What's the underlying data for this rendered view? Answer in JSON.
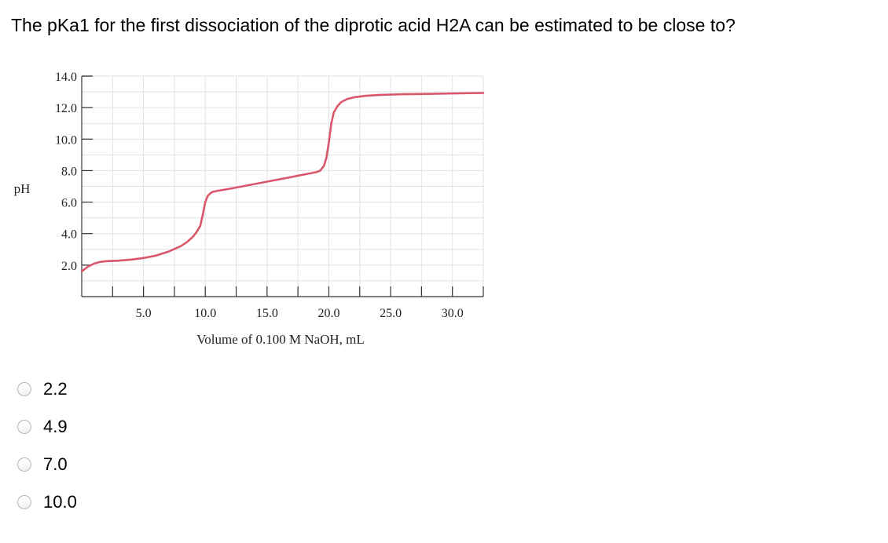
{
  "question": {
    "text": "The pKa1 for the first dissociation of the diprotic acid H2A can be estimated to be close to?"
  },
  "options": [
    {
      "label": "2.2",
      "selected": false
    },
    {
      "label": "4.9",
      "selected": false
    },
    {
      "label": "7.0",
      "selected": false
    },
    {
      "label": "10.0",
      "selected": false
    }
  ],
  "colors": {
    "curve": "#d9566b",
    "grid": "#e2e2e2",
    "axis": "#333333"
  },
  "chart_data": {
    "type": "line",
    "title": "",
    "xlabel": "Volume of 0.100 M NaOH, mL",
    "ylabel": "pH",
    "xlim": [
      0,
      32.5
    ],
    "ylim": [
      0,
      14
    ],
    "x_ticks": [
      5.0,
      10.0,
      15.0,
      20.0,
      25.0,
      30.0
    ],
    "x_tick_labels": [
      "5.0",
      "10.0",
      "15.0",
      "20.0",
      "25.0",
      "30.0"
    ],
    "y_ticks": [
      2.0,
      4.0,
      6.0,
      8.0,
      10.0,
      12.0,
      14.0
    ],
    "y_tick_labels": [
      "2.0",
      "4.0",
      "6.0",
      "8.0",
      "10.0",
      "12.0",
      "14.0"
    ],
    "grid": true,
    "legend": "none",
    "series": [
      {
        "x": [
          0,
          0.5,
          1.0,
          1.5,
          2.0,
          3.0,
          4.0,
          5.0,
          6.0,
          7.0,
          8.0,
          8.5,
          9.0,
          9.3,
          9.6,
          9.8,
          10.0,
          10.2,
          10.4,
          10.6,
          11.0,
          12.0,
          13.0,
          14.0,
          15.0,
          16.0,
          17.0,
          18.0,
          19.0,
          19.3,
          19.6,
          19.8,
          20.0,
          20.2,
          20.4,
          20.7,
          21.0,
          21.5,
          22.0,
          23.0,
          24.0,
          26.0,
          28.0,
          30.0,
          32.5
        ],
        "y": [
          1.6,
          1.9,
          2.1,
          2.2,
          2.25,
          2.28,
          2.35,
          2.45,
          2.6,
          2.85,
          3.2,
          3.45,
          3.8,
          4.1,
          4.5,
          5.2,
          6.0,
          6.4,
          6.55,
          6.65,
          6.72,
          6.85,
          7.0,
          7.15,
          7.3,
          7.45,
          7.6,
          7.75,
          7.9,
          8.0,
          8.3,
          8.8,
          9.8,
          11.0,
          11.7,
          12.1,
          12.35,
          12.55,
          12.65,
          12.75,
          12.8,
          12.85,
          12.87,
          12.9,
          12.93
        ]
      }
    ]
  }
}
